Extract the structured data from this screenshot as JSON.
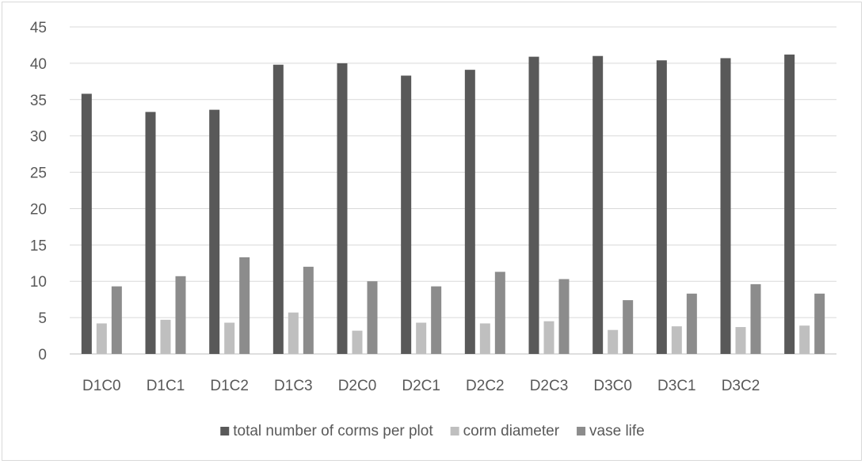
{
  "chart_data": {
    "type": "bar",
    "title": "",
    "xlabel": "",
    "ylabel": "",
    "ylim": [
      0,
      45
    ],
    "ytick_step": 5,
    "yticks": [
      "0",
      "5",
      "10",
      "15",
      "20",
      "25",
      "30",
      "35",
      "40",
      "45"
    ],
    "grid": true,
    "legend_position": "bottom",
    "categories": [
      "D1C0",
      "D1C1",
      "D1C2",
      "D1C3",
      "D2C0",
      "D2C1",
      "D2C2",
      "D2C3",
      "D3C0",
      "D3C1",
      "D3C2",
      ""
    ],
    "series": [
      {
        "name": "total number of corms per plot",
        "color": "#595959",
        "values": [
          35.8,
          33.3,
          33.6,
          39.8,
          40.0,
          38.3,
          39.1,
          40.9,
          41.0,
          40.4,
          40.7,
          41.2
        ]
      },
      {
        "name": "corm diameter",
        "color": "#bfbfbf",
        "values": [
          4.2,
          4.7,
          4.3,
          5.7,
          3.2,
          4.3,
          4.2,
          4.5,
          3.3,
          3.8,
          3.7,
          3.9
        ]
      },
      {
        "name": "vase life",
        "color": "#8c8c8c",
        "values": [
          9.3,
          10.7,
          13.3,
          12.0,
          10.0,
          9.3,
          11.3,
          10.3,
          7.4,
          8.3,
          9.6,
          8.3
        ]
      }
    ]
  }
}
